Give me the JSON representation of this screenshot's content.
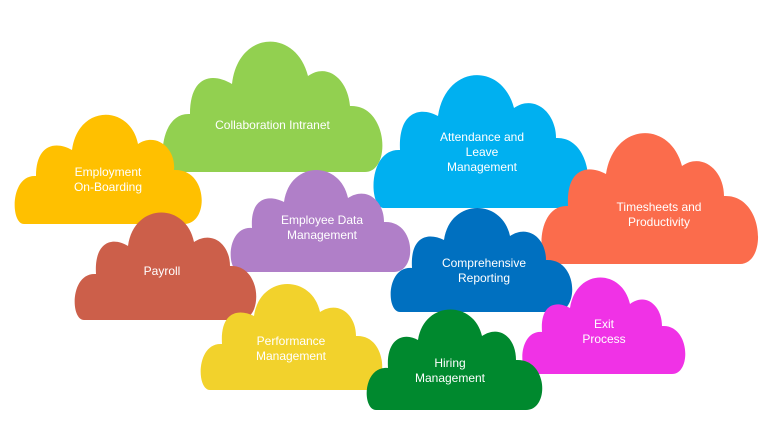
{
  "clouds": [
    {
      "id": "collaboration-intranet",
      "label": "Collaboration Intranet",
      "color": "#92d050"
    },
    {
      "id": "employment-onboarding",
      "label": "Employment\nOn-Boarding",
      "color": "#ffc000"
    },
    {
      "id": "attendance-leave",
      "label": "Attendance  and\nLeave\nManagement",
      "color": "#00b0f0"
    },
    {
      "id": "timesheets-productivity",
      "label": "Timesheets and\nProductivity",
      "color": "#fb6c4c"
    },
    {
      "id": "employee-data",
      "label": "Employee Data\nManagement",
      "color": "#b07fc8"
    },
    {
      "id": "payroll",
      "label": "Payroll",
      "color": "#cc5f4a"
    },
    {
      "id": "comprehensive-reporting",
      "label": "Comprehensive\nReporting",
      "color": "#0070c0"
    },
    {
      "id": "exit-process",
      "label": "Exit\nProcess",
      "color": "#f032e6"
    },
    {
      "id": "performance-management",
      "label": "Performance\nManagement",
      "color": "#f2d22c"
    },
    {
      "id": "hiring-management",
      "label": "Hiring\nManagement",
      "color": "#00892e"
    }
  ]
}
